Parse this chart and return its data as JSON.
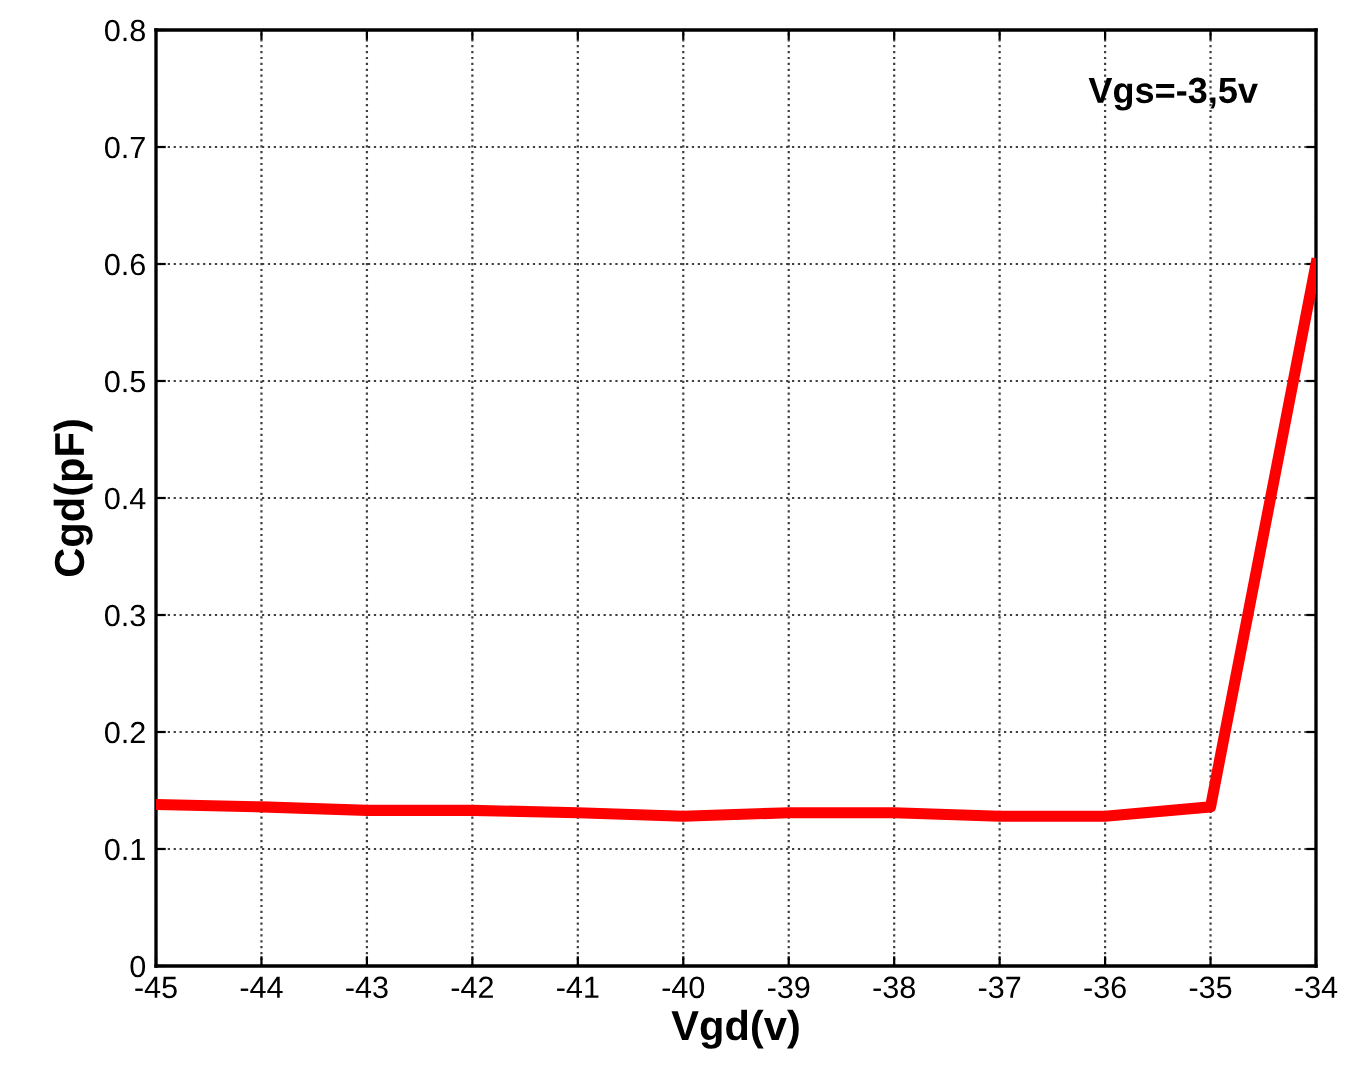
{
  "chart_data": {
    "type": "line",
    "xlabel": "Vgd(v)",
    "ylabel": "Cgd(pF)",
    "annotations": [
      "Vgs=-3,5v"
    ],
    "x": [
      -45,
      -44,
      -43,
      -42,
      -41,
      -40,
      -39,
      -38,
      -37,
      -36,
      -35,
      -34
    ],
    "series": [
      {
        "color": "#ff0000",
        "values": [
          0.138,
          0.136,
          0.133,
          0.133,
          0.131,
          0.128,
          0.131,
          0.131,
          0.128,
          0.128,
          0.136,
          0.6
        ]
      }
    ],
    "xlim": [
      -45,
      -34
    ],
    "xticks": [
      -45,
      -44,
      -43,
      -42,
      -41,
      -40,
      -39,
      -38,
      -37,
      -36,
      -35,
      -34
    ],
    "ylim": [
      0,
      0.8
    ],
    "yticks": [
      0,
      0.1,
      0.2,
      0.3,
      0.4,
      0.5,
      0.6,
      0.7,
      0.8
    ],
    "grid": true,
    "line_style": "solid"
  }
}
